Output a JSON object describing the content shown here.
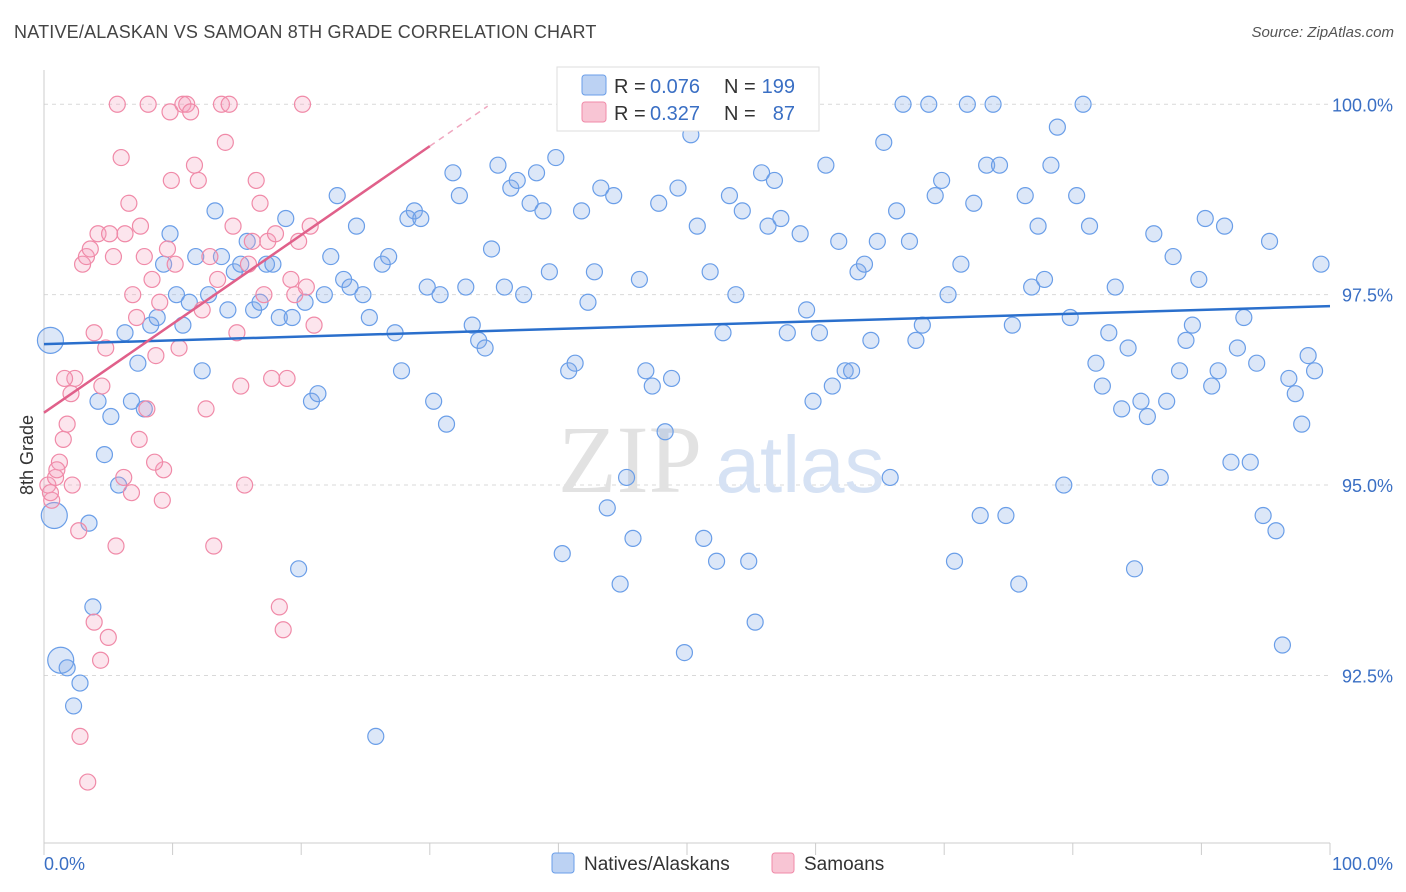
{
  "header": {
    "title": "NATIVE/ALASKAN VS SAMOAN 8TH GRADE CORRELATION CHART",
    "source": "Source: ZipAtlas.com"
  },
  "watermark": {
    "zip": "ZIP",
    "atlas": "atlas"
  },
  "legend": {
    "r_label": "R =",
    "n_label": "N =",
    "rows": [
      {
        "series": "Natives/Alaskans",
        "r": "0.076",
        "n": "199",
        "color": "#6a9ee8"
      },
      {
        "series": "Samoans",
        "r": "0.327",
        "n": "87",
        "color": "#f08aa8"
      }
    ]
  },
  "chart_data": {
    "type": "scatter",
    "title": "NATIVE/ALASKAN VS SAMOAN 8TH GRADE CORRELATION CHART",
    "xlabel": "",
    "ylabel": "8th Grade",
    "xlim": [
      0,
      100
    ],
    "ylim": [
      90.3,
      100.45
    ],
    "x_tick_labels": {
      "left": "0.0%",
      "right": "100.0%"
    },
    "y_ticks": [
      {
        "value": 100.0,
        "label": "100.0%"
      },
      {
        "value": 97.5,
        "label": "97.5%"
      },
      {
        "value": 95.0,
        "label": "95.0%"
      },
      {
        "value": 92.5,
        "label": "92.5%"
      }
    ],
    "grid": true,
    "legend_position": "top-center",
    "series": [
      {
        "name": "Natives/Alaskans",
        "color": "#6a9ee8",
        "trend": {
          "x": [
            0,
            100
          ],
          "y": [
            96.85,
            97.35
          ]
        },
        "points": [
          [
            0.5,
            96.9
          ],
          [
            0.8,
            94.6
          ],
          [
            1.3,
            92.7
          ],
          [
            1.8,
            92.6
          ],
          [
            2.3,
            92.1
          ],
          [
            2.8,
            92.4
          ],
          [
            3.5,
            94.5
          ],
          [
            3.8,
            93.4
          ],
          [
            4.2,
            96.1
          ],
          [
            4.7,
            95.4
          ],
          [
            5.2,
            95.9
          ],
          [
            5.8,
            95.0
          ],
          [
            6.3,
            97.0
          ],
          [
            6.8,
            96.1
          ],
          [
            7.3,
            96.6
          ],
          [
            7.8,
            96.0
          ],
          [
            8.3,
            97.1
          ],
          [
            8.8,
            97.2
          ],
          [
            9.3,
            97.9
          ],
          [
            9.8,
            98.3
          ],
          [
            10.3,
            97.5
          ],
          [
            10.8,
            97.1
          ],
          [
            11.3,
            97.4
          ],
          [
            11.8,
            98.0
          ],
          [
            12.3,
            96.5
          ],
          [
            12.8,
            97.5
          ],
          [
            13.3,
            98.6
          ],
          [
            13.8,
            98.0
          ],
          [
            14.3,
            97.3
          ],
          [
            14.8,
            97.8
          ],
          [
            15.3,
            97.9
          ],
          [
            15.8,
            98.2
          ],
          [
            16.3,
            97.3
          ],
          [
            16.8,
            97.4
          ],
          [
            17.3,
            97.9
          ],
          [
            17.8,
            97.9
          ],
          [
            18.3,
            97.2
          ],
          [
            18.8,
            98.5
          ],
          [
            19.3,
            97.2
          ],
          [
            19.8,
            93.9
          ],
          [
            20.3,
            97.4
          ],
          [
            20.8,
            96.1
          ],
          [
            21.3,
            96.2
          ],
          [
            21.8,
            97.5
          ],
          [
            22.3,
            98.0
          ],
          [
            22.8,
            98.8
          ],
          [
            23.3,
            97.7
          ],
          [
            23.8,
            97.6
          ],
          [
            24.3,
            98.4
          ],
          [
            24.8,
            97.5
          ],
          [
            25.3,
            97.2
          ],
          [
            25.8,
            91.7
          ],
          [
            26.3,
            97.9
          ],
          [
            26.8,
            98.0
          ],
          [
            27.3,
            97.0
          ],
          [
            27.8,
            96.5
          ],
          [
            28.3,
            98.5
          ],
          [
            28.8,
            98.6
          ],
          [
            29.3,
            98.5
          ],
          [
            29.8,
            97.6
          ],
          [
            30.3,
            96.1
          ],
          [
            30.8,
            97.5
          ],
          [
            31.3,
            95.8
          ],
          [
            31.8,
            99.1
          ],
          [
            32.3,
            98.8
          ],
          [
            32.8,
            97.6
          ],
          [
            33.3,
            97.1
          ],
          [
            33.8,
            96.9
          ],
          [
            34.3,
            96.8
          ],
          [
            34.8,
            98.1
          ],
          [
            35.3,
            99.2
          ],
          [
            35.8,
            97.6
          ],
          [
            36.3,
            98.9
          ],
          [
            36.8,
            99.0
          ],
          [
            37.3,
            97.5
          ],
          [
            37.8,
            98.7
          ],
          [
            38.3,
            99.1
          ],
          [
            38.8,
            98.6
          ],
          [
            39.3,
            97.8
          ],
          [
            39.8,
            99.3
          ],
          [
            40.3,
            94.1
          ],
          [
            40.8,
            96.5
          ],
          [
            41.3,
            96.6
          ],
          [
            41.8,
            98.6
          ],
          [
            42.3,
            97.4
          ],
          [
            42.8,
            97.8
          ],
          [
            43.3,
            98.9
          ],
          [
            43.8,
            94.7
          ],
          [
            44.3,
            98.8
          ],
          [
            44.8,
            93.7
          ],
          [
            45.3,
            95.1
          ],
          [
            45.8,
            94.3
          ],
          [
            46.3,
            97.7
          ],
          [
            46.8,
            96.5
          ],
          [
            47.3,
            96.3
          ],
          [
            47.8,
            98.7
          ],
          [
            48.3,
            95.7
          ],
          [
            48.8,
            96.4
          ],
          [
            49.3,
            98.9
          ],
          [
            49.8,
            92.8
          ],
          [
            50.3,
            99.6
          ],
          [
            50.8,
            98.4
          ],
          [
            51.3,
            94.3
          ],
          [
            51.8,
            97.8
          ],
          [
            52.3,
            94.0
          ],
          [
            52.8,
            97.0
          ],
          [
            53.3,
            98.8
          ],
          [
            53.8,
            97.5
          ],
          [
            54.3,
            98.6
          ],
          [
            54.8,
            94.0
          ],
          [
            55.3,
            93.2
          ],
          [
            55.8,
            99.1
          ],
          [
            56.3,
            98.4
          ],
          [
            56.8,
            99.0
          ],
          [
            57.3,
            98.5
          ],
          [
            57.8,
            97.0
          ],
          [
            58.3,
            100.0
          ],
          [
            58.8,
            98.3
          ],
          [
            59.3,
            97.3
          ],
          [
            59.8,
            96.1
          ],
          [
            60.3,
            97.0
          ],
          [
            60.8,
            99.2
          ],
          [
            61.3,
            96.3
          ],
          [
            61.8,
            98.2
          ],
          [
            62.3,
            96.5
          ],
          [
            62.8,
            96.5
          ],
          [
            63.3,
            97.8
          ],
          [
            63.8,
            97.9
          ],
          [
            64.3,
            96.9
          ],
          [
            64.8,
            98.2
          ],
          [
            65.3,
            99.5
          ],
          [
            65.8,
            95.1
          ],
          [
            66.3,
            98.6
          ],
          [
            66.8,
            100.0
          ],
          [
            67.3,
            98.2
          ],
          [
            67.8,
            96.9
          ],
          [
            68.3,
            97.1
          ],
          [
            68.8,
            100.0
          ],
          [
            69.3,
            98.8
          ],
          [
            69.8,
            99.0
          ],
          [
            70.3,
            97.5
          ],
          [
            70.8,
            94.0
          ],
          [
            71.3,
            97.9
          ],
          [
            71.8,
            100.0
          ],
          [
            72.3,
            98.7
          ],
          [
            72.8,
            94.6
          ],
          [
            73.3,
            99.2
          ],
          [
            73.8,
            100.0
          ],
          [
            74.3,
            99.2
          ],
          [
            74.8,
            94.6
          ],
          [
            75.3,
            97.1
          ],
          [
            75.8,
            93.7
          ],
          [
            76.3,
            98.8
          ],
          [
            76.8,
            97.6
          ],
          [
            77.3,
            98.4
          ],
          [
            77.8,
            97.7
          ],
          [
            78.3,
            99.2
          ],
          [
            78.8,
            99.7
          ],
          [
            79.3,
            95.0
          ],
          [
            79.8,
            97.2
          ],
          [
            80.3,
            98.8
          ],
          [
            80.8,
            100.0
          ],
          [
            81.3,
            98.4
          ],
          [
            81.8,
            96.6
          ],
          [
            82.3,
            96.3
          ],
          [
            82.8,
            97.0
          ],
          [
            83.3,
            97.6
          ],
          [
            83.8,
            96.0
          ],
          [
            84.3,
            96.8
          ],
          [
            84.8,
            93.9
          ],
          [
            85.3,
            96.1
          ],
          [
            85.8,
            95.9
          ],
          [
            86.3,
            98.3
          ],
          [
            86.8,
            95.1
          ],
          [
            87.3,
            96.1
          ],
          [
            87.8,
            98.0
          ],
          [
            88.3,
            96.5
          ],
          [
            88.8,
            96.9
          ],
          [
            89.3,
            97.1
          ],
          [
            89.8,
            97.7
          ],
          [
            90.3,
            98.5
          ],
          [
            90.8,
            96.3
          ],
          [
            91.3,
            96.5
          ],
          [
            91.8,
            98.4
          ],
          [
            92.3,
            95.3
          ],
          [
            92.8,
            96.8
          ],
          [
            93.3,
            97.2
          ],
          [
            93.8,
            95.3
          ],
          [
            94.3,
            96.6
          ],
          [
            94.8,
            94.6
          ],
          [
            95.3,
            98.2
          ],
          [
            95.8,
            94.4
          ],
          [
            96.3,
            92.9
          ],
          [
            96.8,
            96.4
          ],
          [
            97.3,
            96.2
          ],
          [
            97.8,
            95.8
          ],
          [
            98.3,
            96.7
          ],
          [
            98.8,
            96.5
          ],
          [
            99.3,
            97.9
          ]
        ]
      },
      {
        "name": "Samoans",
        "color": "#f08aa8",
        "trend": {
          "x": [
            0,
            30
          ],
          "y": [
            95.95,
            99.45
          ]
        },
        "points": [
          [
            0.3,
            95.0
          ],
          [
            0.6,
            94.8
          ],
          [
            0.9,
            95.1
          ],
          [
            1.2,
            95.3
          ],
          [
            1.5,
            95.6
          ],
          [
            1.8,
            95.8
          ],
          [
            2.1,
            96.2
          ],
          [
            2.4,
            96.4
          ],
          [
            2.7,
            94.4
          ],
          [
            3.0,
            97.9
          ],
          [
            3.3,
            98.0
          ],
          [
            3.6,
            98.1
          ],
          [
            3.9,
            97.0
          ],
          [
            4.2,
            98.3
          ],
          [
            4.5,
            96.3
          ],
          [
            4.8,
            96.8
          ],
          [
            5.1,
            98.3
          ],
          [
            5.4,
            98.0
          ],
          [
            5.7,
            100.0
          ],
          [
            6.0,
            99.3
          ],
          [
            6.3,
            98.3
          ],
          [
            6.6,
            98.7
          ],
          [
            6.9,
            97.5
          ],
          [
            7.2,
            97.2
          ],
          [
            7.5,
            98.4
          ],
          [
            7.8,
            98.0
          ],
          [
            8.1,
            100.0
          ],
          [
            8.4,
            97.7
          ],
          [
            8.7,
            96.7
          ],
          [
            9.0,
            97.4
          ],
          [
            9.3,
            95.2
          ],
          [
            9.6,
            98.1
          ],
          [
            9.9,
            99.0
          ],
          [
            10.2,
            97.9
          ],
          [
            10.5,
            96.8
          ],
          [
            10.8,
            100.0
          ],
          [
            11.1,
            100.0
          ],
          [
            11.4,
            99.9
          ],
          [
            11.7,
            99.2
          ],
          [
            12.0,
            99.0
          ],
          [
            12.3,
            97.3
          ],
          [
            12.6,
            96.0
          ],
          [
            12.9,
            98.0
          ],
          [
            13.2,
            94.2
          ],
          [
            13.5,
            97.7
          ],
          [
            13.8,
            100.0
          ],
          [
            14.1,
            99.5
          ],
          [
            14.4,
            100.0
          ],
          [
            14.7,
            98.4
          ],
          [
            15.0,
            97.0
          ],
          [
            15.3,
            96.3
          ],
          [
            15.6,
            95.0
          ],
          [
            15.9,
            97.9
          ],
          [
            16.2,
            98.2
          ],
          [
            16.5,
            99.0
          ],
          [
            16.8,
            98.7
          ],
          [
            17.1,
            97.5
          ],
          [
            17.4,
            98.2
          ],
          [
            17.7,
            96.4
          ],
          [
            18.0,
            98.3
          ],
          [
            18.3,
            93.4
          ],
          [
            18.6,
            93.1
          ],
          [
            18.9,
            96.4
          ],
          [
            19.2,
            97.7
          ],
          [
            19.5,
            97.5
          ],
          [
            19.8,
            98.2
          ],
          [
            20.1,
            100.0
          ],
          [
            20.4,
            97.6
          ],
          [
            20.7,
            98.4
          ],
          [
            21.0,
            97.1
          ],
          [
            0.5,
            94.9
          ],
          [
            1.0,
            95.2
          ],
          [
            1.6,
            96.4
          ],
          [
            2.2,
            95.0
          ],
          [
            2.8,
            91.7
          ],
          [
            3.4,
            91.1
          ],
          [
            3.9,
            93.2
          ],
          [
            4.4,
            92.7
          ],
          [
            5.0,
            93.0
          ],
          [
            5.6,
            94.2
          ],
          [
            6.2,
            95.1
          ],
          [
            6.8,
            94.9
          ],
          [
            7.4,
            95.6
          ],
          [
            8.0,
            96.0
          ],
          [
            8.6,
            95.3
          ],
          [
            9.2,
            94.8
          ],
          [
            9.8,
            99.9
          ]
        ]
      }
    ]
  }
}
